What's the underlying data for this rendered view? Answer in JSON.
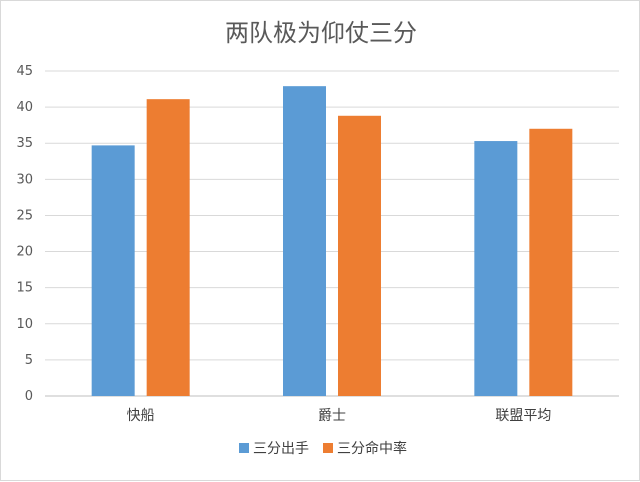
{
  "chart_data": {
    "type": "bar",
    "title": "两队极为仰仗三分",
    "categories": [
      "快船",
      "爵士",
      "联盟平均"
    ],
    "series": [
      {
        "name": "三分出手",
        "values": [
          34.7,
          42.9,
          35.3
        ],
        "color": "#5b9bd5"
      },
      {
        "name": "三分命中率",
        "values": [
          41.1,
          38.8,
          37.0
        ],
        "color": "#ed7d31"
      }
    ],
    "ylim": [
      0,
      45
    ],
    "yticks": [
      "0",
      "5",
      "10",
      "15",
      "20",
      "25",
      "30",
      "35",
      "40",
      "45"
    ],
    "grid": true,
    "legend": "bottom"
  }
}
